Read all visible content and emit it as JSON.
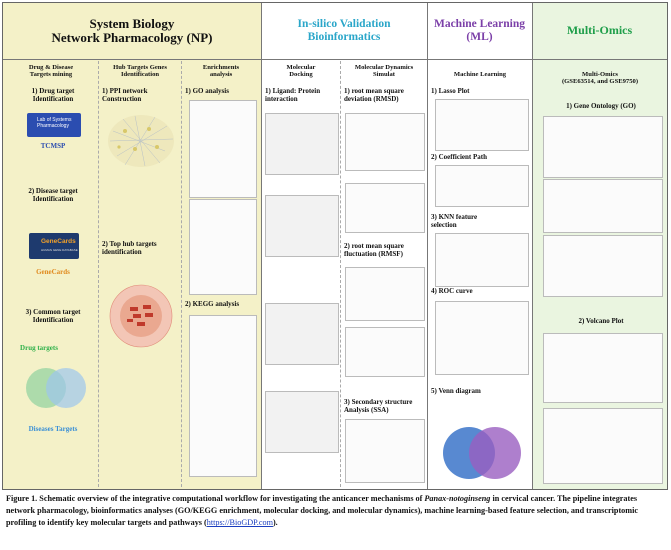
{
  "headers": {
    "np": "System Biology\nNetwork Pharmacology (NP)",
    "insilico": "In-silico Validation\nBioinformatics",
    "ml": "Machine Learning\n(ML)",
    "omics": "Multi-Omics"
  },
  "colors": {
    "np_bg": "#f4f1c8",
    "insilico_bg": "#ffffff",
    "ml_bg": "#ffffff",
    "omics_bg": "#eaf5e0",
    "insilico_text": "#2aa6c9",
    "ml_text": "#7b3fa8",
    "omics_text": "#1f9e4a",
    "drug_targets": "#2fb14a",
    "disease_targets": "#3a8fd6",
    "genecards": "#e08a1e",
    "tcmsp": "#2b4db0"
  },
  "subheaders": {
    "drug_disease": "Drug & Disease\nTargets mining",
    "hub": "Hub Targets Genes\nIdentification",
    "enrich": "Enrichments\nanalysis",
    "docking": "Molecular\nDocking",
    "md": "Molecular Dynamics\nSimulat",
    "ml": "Machine Learning",
    "omics": "Multi-Omics\n(GSE63514, and GSE9750)"
  },
  "steps": {
    "drug_target": "1) Drug target\nIdentification",
    "tcmsp_logo": "Lab of Systems\nPharmacology",
    "tcmsp": "TCMSP",
    "disease_target": "2) Disease target\nIdentification",
    "genecards_logo": "GeneCards",
    "genecards_sub": "HUMAN GENE DATABASE",
    "genecards": "GeneCards",
    "common_target": "3) Common target\nIdentification",
    "drug_targets": "Drug targets",
    "disease_targets": "Diseases Targets",
    "ppi": "1) PPI network\nConstruction",
    "top_hub": "2) Top hub targets\nidentification",
    "go": "1) GO analysis",
    "kegg": "2) KEGG analysis",
    "ligand": "1) Ligand: Protein\ninteraction",
    "rmsd": "1) root mean square\ndeviation (RMSD)",
    "rmsf": "2) root mean square\nfluctuation (RMSF)",
    "ssa": "3) Secondary structure\nAnalysis (SSA)",
    "lasso": "1) Lasso Plot",
    "coef": "2) Coefficient Path",
    "knn": "3) KNN feature\nselection",
    "roc": "4) ROC curve",
    "venn": "5) Venn diagram",
    "omics_go": "1) Gene Ontology (GO)",
    "volcano": "2) Volcano Plot"
  },
  "caption": {
    "label": "Figure 1.",
    "text_a": " Schematic overview of the integrative computational workflow for investigating the anticancer mechanisms of ",
    "species": "Panax-notoginseng",
    "text_b": " in cervical cancer. The pipeline integrates network pharmacology, bioinformatics analyses (GO/KEGG enrichment, molecular docking, and molecular dynamics), machine learning-based feature selection, and transcriptomic profiling to identify key molecular targets and pathways (",
    "link": "https://BioGDP.com",
    "text_c": ")."
  }
}
